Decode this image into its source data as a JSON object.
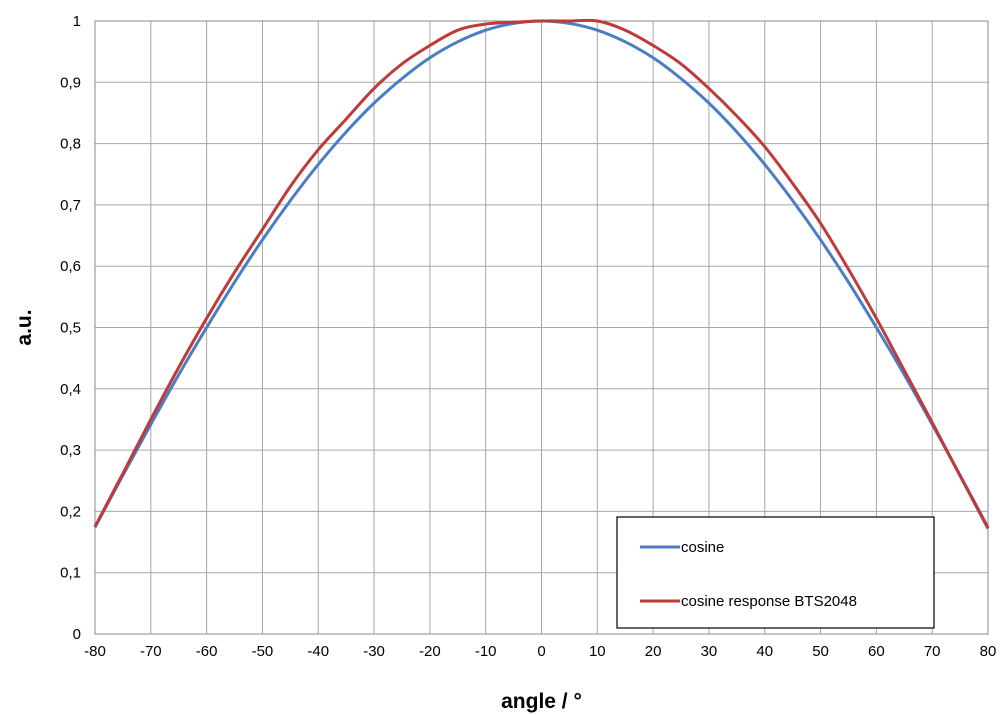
{
  "chart_data": {
    "type": "line",
    "title": "",
    "xlabel": "angle / °",
    "ylabel": "a.u.",
    "xlim": [
      -80,
      80
    ],
    "ylim": [
      0,
      1
    ],
    "x_ticks": [
      "-80",
      "-70",
      "-60",
      "-50",
      "-40",
      "-30",
      "-20",
      "-10",
      "0",
      "10",
      "20",
      "30",
      "40",
      "50",
      "60",
      "70",
      "80"
    ],
    "y_ticks": [
      "0",
      "0,1",
      "0,2",
      "0,3",
      "0,4",
      "0,5",
      "0,6",
      "0,7",
      "0,8",
      "0,9",
      "1"
    ],
    "grid": true,
    "legend_position": "bottom-right",
    "series": [
      {
        "name": "cosine",
        "color": "#4a7ec4",
        "x": [
          -80,
          -75,
          -70,
          -65,
          -60,
          -55,
          -50,
          -45,
          -40,
          -35,
          -30,
          -25,
          -20,
          -15,
          -10,
          -5,
          0,
          5,
          10,
          15,
          20,
          25,
          30,
          35,
          40,
          45,
          50,
          55,
          60,
          65,
          70,
          75,
          80
        ],
        "y": [
          0.174,
          0.259,
          0.342,
          0.423,
          0.5,
          0.574,
          0.643,
          0.707,
          0.766,
          0.819,
          0.866,
          0.906,
          0.94,
          0.966,
          0.985,
          0.996,
          1.0,
          0.996,
          0.985,
          0.966,
          0.94,
          0.906,
          0.866,
          0.819,
          0.766,
          0.707,
          0.643,
          0.574,
          0.5,
          0.423,
          0.342,
          0.259,
          0.174
        ]
      },
      {
        "name": "cosine response BTS2048",
        "color": "#c0393b",
        "x": [
          -80,
          -75,
          -70,
          -65,
          -60,
          -55,
          -50,
          -45,
          -40,
          -35,
          -30,
          -25,
          -20,
          -15,
          -10,
          -5,
          0,
          5,
          10,
          15,
          20,
          25,
          30,
          35,
          40,
          45,
          50,
          55,
          60,
          65,
          70,
          75,
          80
        ],
        "y": [
          0.175,
          0.262,
          0.35,
          0.435,
          0.515,
          0.59,
          0.66,
          0.73,
          0.79,
          0.84,
          0.89,
          0.93,
          0.96,
          0.985,
          0.995,
          0.998,
          1.0,
          1.0,
          1.0,
          0.985,
          0.96,
          0.93,
          0.89,
          0.845,
          0.795,
          0.735,
          0.67,
          0.595,
          0.515,
          0.43,
          0.345,
          0.258,
          0.172
        ]
      }
    ]
  }
}
